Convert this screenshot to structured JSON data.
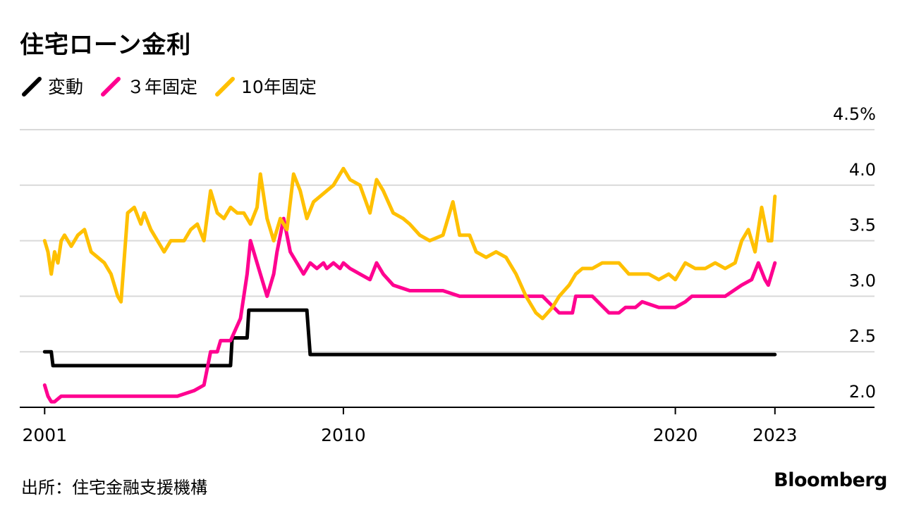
{
  "chart_data": {
    "type": "line",
    "title": "住宅ローン金利",
    "source": "出所：住宅金融支援機構",
    "brand": "Bloomberg",
    "ylim": [
      2.0,
      4.5
    ],
    "yticks": [
      {
        "value": 2.0,
        "label": "2.0"
      },
      {
        "value": 2.5,
        "label": "2.5"
      },
      {
        "value": 3.0,
        "label": "3.0"
      },
      {
        "value": 3.5,
        "label": "3.5"
      },
      {
        "value": 4.0,
        "label": "4.0"
      },
      {
        "value": 4.5,
        "label": "4.5%"
      }
    ],
    "xlim": [
      2000.25,
      2026.0
    ],
    "xticks": [
      {
        "value": 2001,
        "label": "2001"
      },
      {
        "value": 2010,
        "label": "2010"
      },
      {
        "value": 2020,
        "label": "2020"
      },
      {
        "value": 2023,
        "label": "2023"
      }
    ],
    "series": [
      {
        "name": "変動",
        "color": "#000000",
        "step": true,
        "x": [
          2001.0,
          2001.2,
          2001.25,
          2006.6,
          2006.65,
          2007.1,
          2007.15,
          2008.9,
          2009.0,
          2023.0
        ],
        "y": [
          2.5,
          2.5,
          2.375,
          2.375,
          2.625,
          2.625,
          2.875,
          2.875,
          2.475,
          2.475
        ]
      },
      {
        "name": "３年固定",
        "color": "#ff0090",
        "step": false,
        "x": [
          2001.0,
          2001.1,
          2001.2,
          2001.3,
          2001.5,
          2001.7,
          2001.8,
          2002.0,
          2003.0,
          2004.0,
          2004.5,
          2005.0,
          2005.5,
          2005.8,
          2006.0,
          2006.2,
          2006.3,
          2006.6,
          2006.9,
          2007.1,
          2007.2,
          2007.5,
          2007.7,
          2007.9,
          2008.0,
          2008.2,
          2008.4,
          2008.6,
          2008.8,
          2009.0,
          2009.2,
          2009.4,
          2009.5,
          2009.7,
          2009.9,
          2010.0,
          2010.2,
          2010.5,
          2010.8,
          2011.0,
          2011.2,
          2011.5,
          2012.0,
          2012.5,
          2013.0,
          2013.5,
          2014.0,
          2015.0,
          2016.0,
          2016.5,
          2016.6,
          2016.9,
          2017.0,
          2017.2,
          2017.5,
          2018.0,
          2018.3,
          2018.5,
          2018.8,
          2019.0,
          2019.5,
          2020.0,
          2020.3,
          2020.5,
          2021.0,
          2021.5,
          2022.0,
          2022.3,
          2022.5,
          2022.7,
          2022.8,
          2022.9,
          2023.0
        ],
        "y": [
          2.2,
          2.1,
          2.05,
          2.05,
          2.1,
          2.1,
          2.1,
          2.1,
          2.1,
          2.1,
          2.1,
          2.1,
          2.15,
          2.2,
          2.5,
          2.5,
          2.6,
          2.6,
          2.8,
          3.2,
          3.5,
          3.2,
          3.0,
          3.2,
          3.4,
          3.7,
          3.4,
          3.3,
          3.2,
          3.3,
          3.25,
          3.3,
          3.25,
          3.3,
          3.25,
          3.3,
          3.25,
          3.2,
          3.15,
          3.3,
          3.2,
          3.1,
          3.05,
          3.05,
          3.05,
          3.0,
          3.0,
          3.0,
          3.0,
          2.85,
          2.85,
          2.85,
          3.0,
          3.0,
          3.0,
          2.85,
          2.85,
          2.9,
          2.9,
          2.95,
          2.9,
          2.9,
          2.95,
          3.0,
          3.0,
          3.0,
          3.1,
          3.15,
          3.3,
          3.15,
          3.1,
          3.2,
          3.3
        ]
      },
      {
        "name": "10年固定",
        "color": "#ffc000",
        "step": false,
        "x": [
          2001.0,
          2001.1,
          2001.2,
          2001.3,
          2001.4,
          2001.5,
          2001.6,
          2001.8,
          2002.0,
          2002.2,
          2002.4,
          2002.6,
          2002.8,
          2003.0,
          2003.2,
          2003.3,
          2003.5,
          2003.7,
          2003.9,
          2004.0,
          2004.2,
          2004.4,
          2004.6,
          2004.8,
          2005.0,
          2005.2,
          2005.4,
          2005.6,
          2005.8,
          2006.0,
          2006.2,
          2006.4,
          2006.6,
          2006.8,
          2007.0,
          2007.2,
          2007.4,
          2007.5,
          2007.7,
          2007.9,
          2008.1,
          2008.3,
          2008.5,
          2008.7,
          2008.9,
          2009.1,
          2009.3,
          2009.5,
          2009.7,
          2009.9,
          2010.0,
          2010.2,
          2010.5,
          2010.8,
          2011.0,
          2011.2,
          2011.5,
          2011.8,
          2012.0,
          2012.3,
          2012.6,
          2013.0,
          2013.3,
          2013.5,
          2013.8,
          2014.0,
          2014.3,
          2014.6,
          2014.9,
          2015.2,
          2015.5,
          2015.8,
          2016.0,
          2016.3,
          2016.5,
          2016.8,
          2017.0,
          2017.2,
          2017.5,
          2017.8,
          2018.0,
          2018.3,
          2018.6,
          2018.9,
          2019.2,
          2019.5,
          2019.8,
          2020.0,
          2020.3,
          2020.6,
          2020.9,
          2021.2,
          2021.5,
          2021.8,
          2022.0,
          2022.2,
          2022.4,
          2022.6,
          2022.8,
          2022.9,
          2023.0
        ],
        "y": [
          3.5,
          3.4,
          3.2,
          3.4,
          3.3,
          3.5,
          3.55,
          3.45,
          3.55,
          3.6,
          3.4,
          3.35,
          3.3,
          3.2,
          3.0,
          2.95,
          3.75,
          3.8,
          3.65,
          3.75,
          3.6,
          3.5,
          3.4,
          3.5,
          3.5,
          3.5,
          3.6,
          3.65,
          3.5,
          3.95,
          3.75,
          3.7,
          3.8,
          3.75,
          3.75,
          3.65,
          3.8,
          4.1,
          3.7,
          3.5,
          3.7,
          3.6,
          4.1,
          3.95,
          3.7,
          3.85,
          3.9,
          3.95,
          4.0,
          4.1,
          4.15,
          4.05,
          4.0,
          3.75,
          4.05,
          3.95,
          3.75,
          3.7,
          3.65,
          3.55,
          3.5,
          3.55,
          3.85,
          3.55,
          3.55,
          3.4,
          3.35,
          3.4,
          3.35,
          3.2,
          3.0,
          2.85,
          2.8,
          2.9,
          3.0,
          3.1,
          3.2,
          3.25,
          3.25,
          3.3,
          3.3,
          3.3,
          3.2,
          3.2,
          3.2,
          3.15,
          3.2,
          3.15,
          3.3,
          3.25,
          3.25,
          3.3,
          3.25,
          3.3,
          3.5,
          3.6,
          3.4,
          3.8,
          3.5,
          3.5,
          3.9
        ]
      }
    ]
  }
}
